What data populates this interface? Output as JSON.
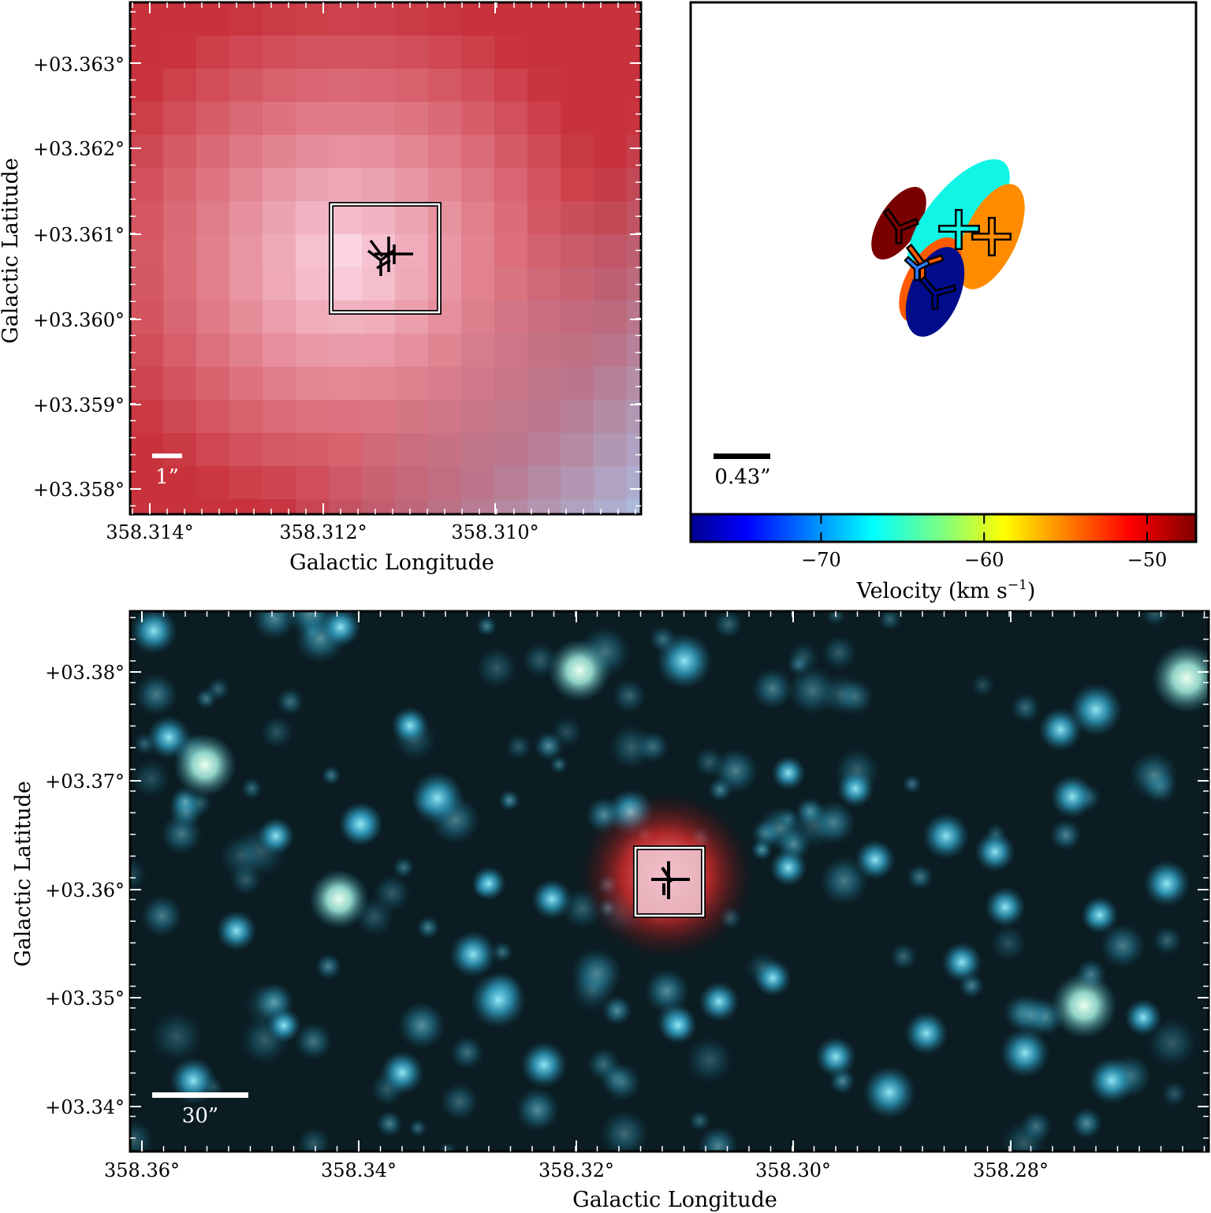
{
  "panel_top_left": {
    "x_axis_label": "Galactic Longitude",
    "y_axis_label": "Galactic Latitude",
    "x_ticks": [
      "358.314°",
      "358.312°",
      "358.310°"
    ],
    "y_ticks": [
      "+03.363°",
      "+03.362°",
      "+03.361°",
      "+03.360°",
      "+03.359°",
      "+03.358°"
    ],
    "scale_bar_label": "1”",
    "colors": {
      "edge": "#c8323c",
      "center": "#ffdcec",
      "corner_blue": "#a8c8ec"
    }
  },
  "panel_top_right": {
    "scale_bar_label": "0.43”",
    "colorbar": {
      "label": "Velocity (km s",
      "label_superscript": "−1",
      "label_close": ")",
      "ticks": [
        "−70",
        "−60",
        "−50"
      ],
      "tick_values": [
        -70,
        -60,
        -50
      ],
      "range": [
        -78,
        -47
      ]
    },
    "components": [
      {
        "color": "#7a0000",
        "symbol": "tri"
      },
      {
        "color": "#11f5e6",
        "symbol": "plus"
      },
      {
        "color": "#ff8c00",
        "symbol": "plus"
      },
      {
        "color": "#ff5a00",
        "symbol": "tri"
      },
      {
        "color": "#000c8a",
        "symbol": "tri"
      }
    ]
  },
  "panel_bottom": {
    "x_axis_label": "Galactic Longitude",
    "y_axis_label": "Galactic Latitude",
    "x_ticks": [
      "358.36°",
      "358.34°",
      "358.32°",
      "358.30°",
      "358.28°"
    ],
    "y_ticks": [
      "+03.38°",
      "+03.37°",
      "+03.36°",
      "+03.35°",
      "+03.34°"
    ],
    "scale_bar_label": "30”",
    "colors": {
      "background": "#0a1a20",
      "stars": "#3ab0d0",
      "source": "#e03030"
    }
  }
}
